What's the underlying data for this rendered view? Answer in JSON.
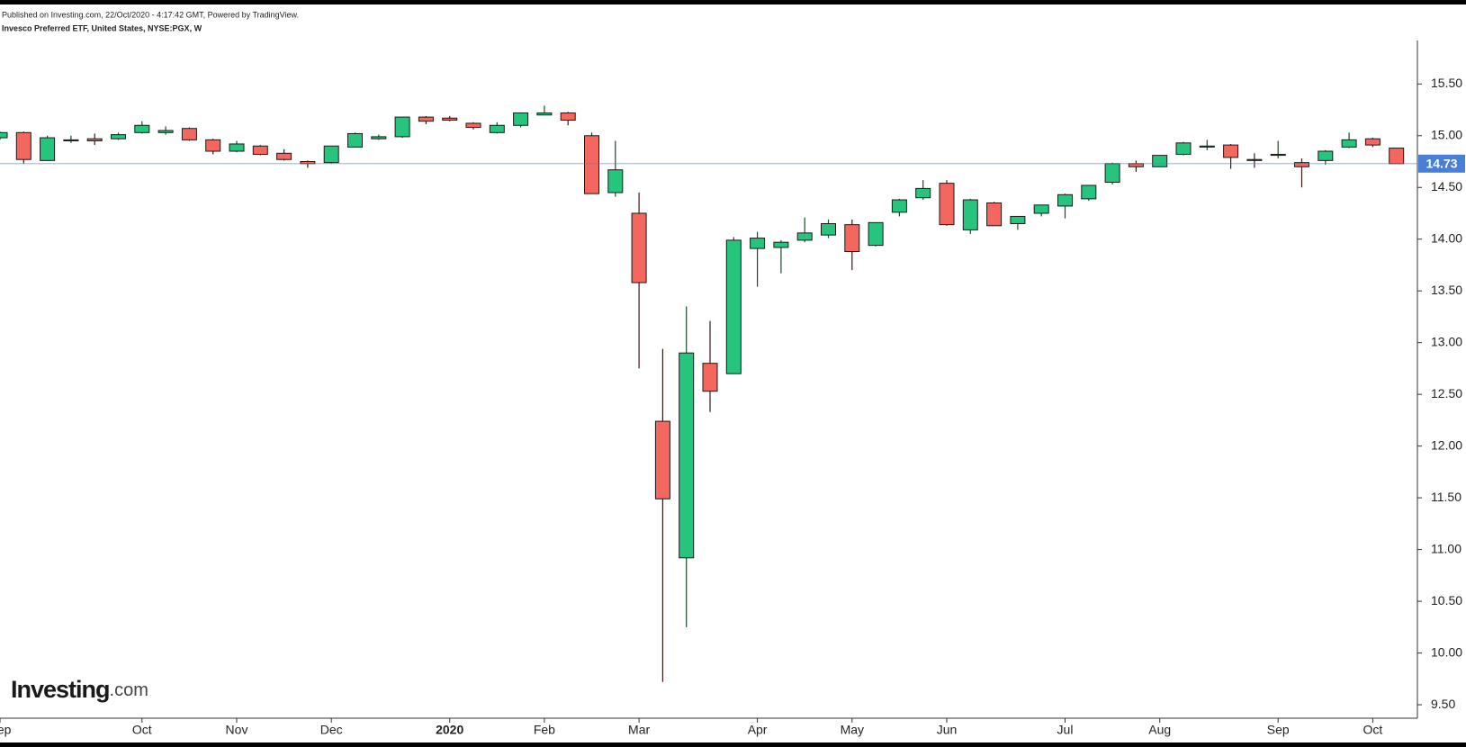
{
  "header": {
    "published": "Published on Investing.com, 22/Oct/2020 - 4:17:42 GMT, Powered by TradingView.",
    "symbol": "Invesco Preferred ETF, United States, NYSE:PGX, W"
  },
  "logo": {
    "name": "Investing",
    "suffix": ".com"
  },
  "chart_data": {
    "type": "candlestick",
    "categories": [
      "Sep",
      null,
      null,
      null,
      null,
      null,
      "Oct",
      null,
      null,
      null,
      "Nov",
      null,
      null,
      null,
      "Dec",
      null,
      null,
      null,
      null,
      "2020",
      null,
      null,
      null,
      "Feb",
      null,
      null,
      null,
      "Mar",
      null,
      null,
      null,
      null,
      "Apr",
      null,
      null,
      null,
      "May",
      null,
      null,
      null,
      "Jun",
      null,
      null,
      null,
      null,
      "Jul",
      null,
      null,
      null,
      "Aug",
      null,
      null,
      null,
      null,
      "Sep",
      null,
      null,
      null,
      "Oct",
      null
    ],
    "open": [
      14.98,
      15.03,
      14.76,
      14.95,
      14.97,
      14.97,
      15.03,
      15.03,
      15.07,
      14.96,
      14.85,
      14.9,
      14.83,
      14.75,
      14.74,
      14.89,
      14.97,
      14.99,
      15.18,
      15.17,
      15.12,
      15.03,
      15.1,
      15.2,
      15.22,
      15.0,
      14.45,
      14.25,
      12.24,
      10.92,
      12.8,
      12.7,
      13.91,
      13.92,
      13.99,
      14.04,
      14.14,
      13.94,
      14.26,
      14.4,
      14.54,
      14.09,
      14.35,
      14.15,
      14.25,
      14.32,
      14.39,
      14.55,
      14.73,
      14.7,
      14.82,
      14.89,
      14.91,
      14.77,
      14.81,
      14.74,
      14.76,
      14.89,
      14.97,
      14.88
    ],
    "high": [
      15.04,
      15.04,
      15.0,
      15.0,
      15.02,
      15.03,
      15.14,
      15.09,
      15.08,
      14.97,
      14.95,
      14.91,
      14.87,
      14.76,
      14.9,
      15.03,
      15.01,
      15.18,
      15.19,
      15.19,
      15.13,
      15.13,
      15.22,
      15.29,
      15.23,
      15.03,
      14.95,
      14.45,
      12.94,
      13.35,
      13.21,
      14.02,
      14.07,
      13.99,
      14.21,
      14.19,
      14.19,
      14.16,
      14.39,
      14.57,
      14.57,
      14.39,
      14.36,
      14.22,
      14.33,
      14.44,
      14.52,
      14.74,
      14.76,
      14.81,
      14.94,
      14.96,
      14.92,
      14.83,
      14.95,
      14.78,
      14.86,
      15.03,
      14.98,
      14.88
    ],
    "low": [
      14.96,
      14.73,
      14.76,
      14.93,
      14.91,
      14.96,
      15.02,
      15.01,
      14.95,
      14.82,
      14.84,
      14.81,
      14.76,
      14.69,
      14.73,
      14.89,
      14.96,
      14.98,
      15.11,
      15.14,
      15.06,
      15.02,
      15.08,
      15.2,
      15.1,
      14.44,
      14.41,
      12.75,
      9.72,
      10.25,
      12.33,
      12.7,
      13.54,
      13.67,
      13.97,
      14.01,
      13.7,
      13.93,
      14.22,
      14.38,
      14.13,
      14.05,
      14.13,
      14.09,
      14.22,
      14.2,
      14.37,
      14.53,
      14.65,
      14.7,
      14.81,
      14.86,
      14.68,
      14.69,
      14.78,
      14.5,
      14.72,
      14.88,
      14.89,
      14.73
    ],
    "close": [
      15.03,
      14.77,
      14.98,
      14.96,
      14.95,
      15.01,
      15.1,
      15.05,
      14.96,
      14.85,
      14.92,
      14.82,
      14.77,
      14.73,
      14.9,
      15.02,
      14.99,
      15.18,
      15.14,
      15.15,
      15.08,
      15.1,
      15.22,
      15.22,
      15.15,
      14.44,
      14.67,
      13.58,
      11.49,
      12.9,
      12.53,
      13.99,
      14.01,
      13.97,
      14.06,
      14.15,
      13.88,
      14.16,
      14.38,
      14.49,
      14.14,
      14.38,
      14.13,
      14.22,
      14.33,
      14.43,
      14.52,
      14.73,
      14.7,
      14.81,
      14.93,
      14.9,
      14.79,
      14.76,
      14.82,
      14.7,
      14.85,
      14.96,
      14.91,
      14.73
    ],
    "up_color": "#26c47d",
    "down_color": "#f4675f",
    "last_price": {
      "value": 14.73,
      "label": "14.73"
    },
    "last_color": "#4a7fd6",
    "ylim": [
      9.37,
      15.92
    ],
    "yticks": [
      {
        "value": 9.5,
        "label": "9.50"
      },
      {
        "value": 10,
        "label": "10.00"
      },
      {
        "value": 10.5,
        "label": "10.50"
      },
      {
        "value": 11,
        "label": "11.00"
      },
      {
        "value": 11.5,
        "label": "11.50"
      },
      {
        "value": 12,
        "label": "12.00"
      },
      {
        "value": 12.5,
        "label": "12.50"
      },
      {
        "value": 13,
        "label": "13.00"
      },
      {
        "value": 13.5,
        "label": "13.50"
      },
      {
        "value": 14,
        "label": "14.00"
      },
      {
        "value": 14.5,
        "label": "14.50"
      },
      {
        "value": 15,
        "label": "15.00"
      },
      {
        "value": 15.5,
        "label": "15.50"
      }
    ]
  }
}
